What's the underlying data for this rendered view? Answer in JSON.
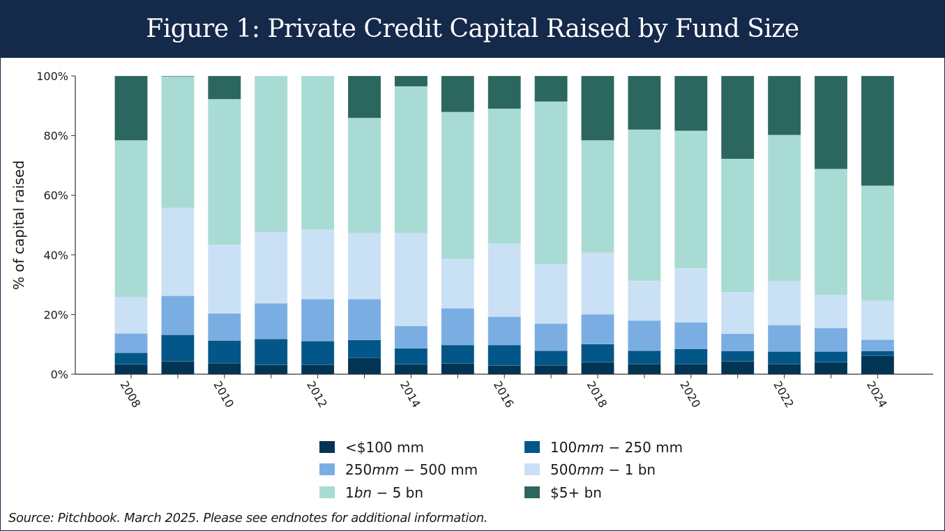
{
  "header": {
    "title": "Figure 1: Private Credit Capital Raised by Fund Size"
  },
  "footer": {
    "source": "Source: Pitchbook. March 2025. Please see endnotes for additional information."
  },
  "chart_data": {
    "type": "bar",
    "stacked": true,
    "title": "Figure 1: Private Credit Capital Raised by Fund Size",
    "xlabel": "",
    "ylabel": "% of capital raised",
    "ylim": [
      0,
      100
    ],
    "yticks": [
      0,
      20,
      40,
      60,
      80,
      100
    ],
    "ytick_labels": [
      "0%",
      "20%",
      "40%",
      "60%",
      "80%",
      "100%"
    ],
    "xtick_labels": [
      "2008",
      "2010",
      "2012",
      "2014",
      "2016",
      "2018",
      "2020",
      "2022",
      "2024"
    ],
    "xtick_rotation_deg": -60,
    "grid": false,
    "legend_placement": "bottom-center",
    "categories": [
      "2008",
      "2009",
      "2010",
      "2011",
      "2012",
      "2013",
      "2014",
      "2015",
      "2016",
      "2017",
      "2018",
      "2019",
      "2020",
      "2021",
      "2022",
      "2023",
      "2024"
    ],
    "series": [
      {
        "name": "<$100 mm",
        "color": "#023453",
        "values": [
          3.3,
          4.3,
          3.7,
          3.1,
          3.2,
          5.5,
          3.3,
          3.6,
          2.9,
          3.0,
          4.0,
          3.4,
          3.4,
          4.3,
          3.4,
          4.0,
          6.2
        ]
      },
      {
        "name": "100mm − 250 mm",
        "color": "#035788",
        "values": [
          3.9,
          8.9,
          7.6,
          8.7,
          7.9,
          6.0,
          5.4,
          6.2,
          6.9,
          4.9,
          6.1,
          4.5,
          5.1,
          3.5,
          4.2,
          3.6,
          1.6
        ]
      },
      {
        "name": "250mm − 500 mm",
        "color": "#7aaee3",
        "values": [
          6.5,
          13.1,
          9.1,
          12.0,
          14.1,
          13.7,
          7.5,
          12.3,
          9.5,
          9.1,
          10.0,
          10.1,
          8.9,
          5.8,
          8.9,
          7.9,
          3.8
        ]
      },
      {
        "name": "500mm − 1 bn",
        "color": "#cae0f5",
        "values": [
          12.1,
          29.4,
          23.0,
          23.8,
          23.2,
          22.1,
          31.1,
          16.5,
          24.5,
          19.8,
          20.6,
          13.3,
          18.1,
          13.9,
          14.7,
          11.0,
          13.0
        ]
      },
      {
        "name": "1bn − 5 bn",
        "color": "#a8dbd4",
        "values": [
          52.6,
          44.1,
          48.8,
          52.4,
          51.6,
          38.6,
          49.2,
          49.3,
          45.2,
          54.6,
          37.7,
          50.7,
          46.1,
          44.7,
          49.0,
          42.3,
          38.6
        ]
      },
      {
        "name": "$5+ bn",
        "color": "#2b675f",
        "values": [
          21.6,
          0.2,
          7.8,
          0.0,
          0.0,
          14.1,
          3.5,
          12.1,
          11.0,
          8.6,
          21.6,
          18.0,
          18.4,
          27.8,
          19.8,
          31.2,
          36.8
        ]
      }
    ],
    "legend": [
      {
        "label_parts": [
          [
            "<$100 mm",
            false
          ]
        ]
      },
      {
        "label_parts": [
          [
            "100",
            false
          ],
          [
            "mm",
            true
          ],
          [
            " − 250 mm",
            false
          ]
        ]
      },
      {
        "label_parts": [
          [
            "250",
            false
          ],
          [
            "mm",
            true
          ],
          [
            " − 500 mm",
            false
          ]
        ]
      },
      {
        "label_parts": [
          [
            "500",
            false
          ],
          [
            "mm",
            true
          ],
          [
            " − 1 bn",
            false
          ]
        ]
      },
      {
        "label_parts": [
          [
            "1",
            false
          ],
          [
            "bn",
            true
          ],
          [
            " − 5 bn",
            false
          ]
        ]
      },
      {
        "label_parts": [
          [
            "$5+ bn",
            false
          ]
        ]
      }
    ]
  }
}
